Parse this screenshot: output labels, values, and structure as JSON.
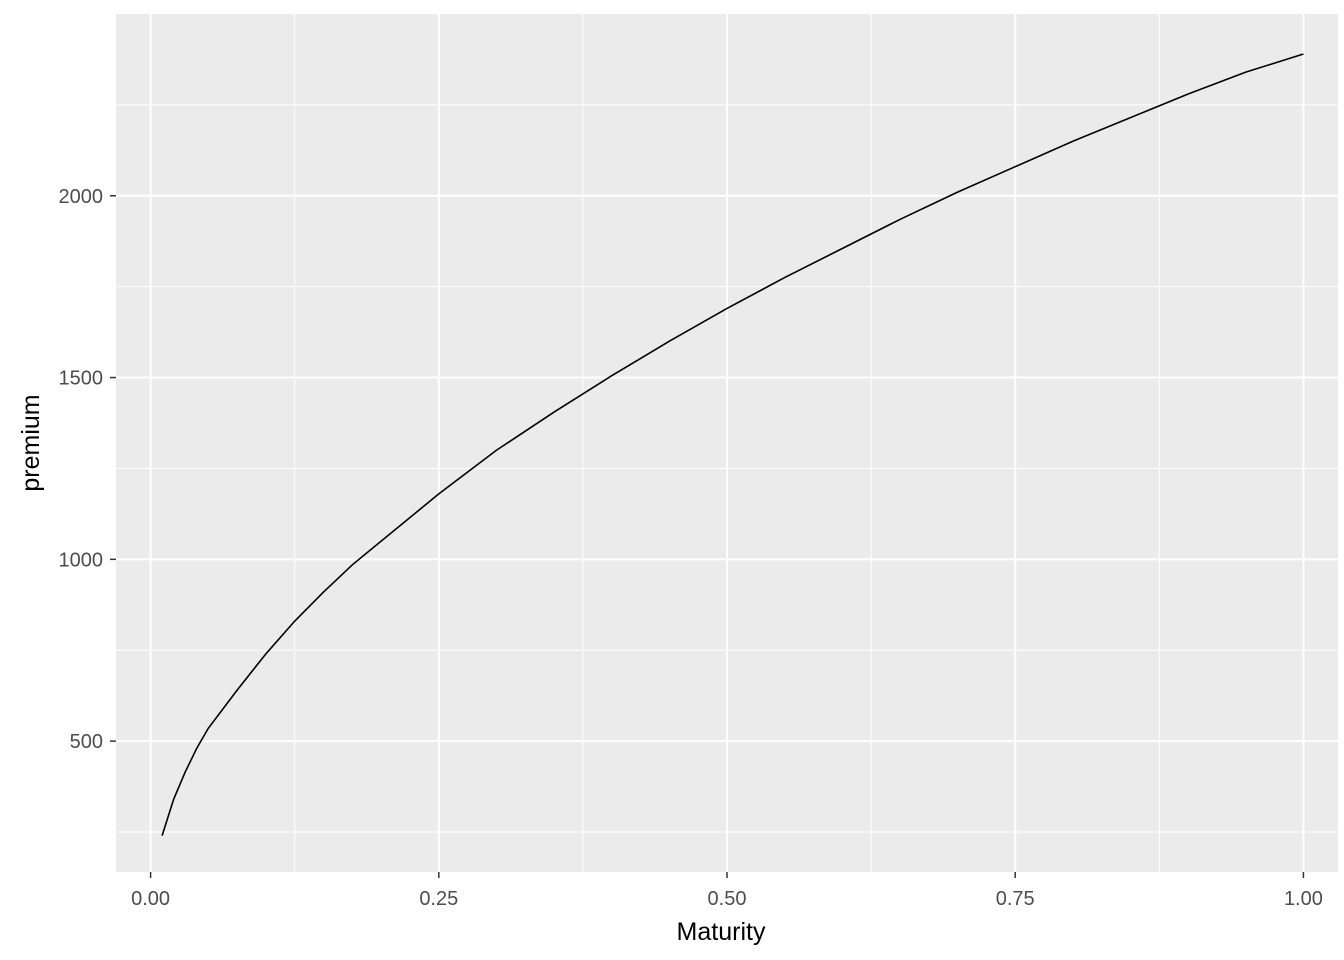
{
  "chart_data": {
    "type": "line",
    "title": "",
    "xlabel": "Maturity",
    "ylabel": "premium",
    "xlim": [
      -0.03,
      1.03
    ],
    "ylim": [
      140,
      2500
    ],
    "x_ticks": [
      0,
      0.25,
      0.5,
      0.75,
      1
    ],
    "x_tick_labels": [
      "0.00",
      "0.25",
      "0.50",
      "0.75",
      "1.00"
    ],
    "y_ticks": [
      500,
      1000,
      1500,
      2000
    ],
    "y_tick_labels": [
      "500",
      "1000",
      "1500",
      "2000"
    ],
    "grid": true,
    "legend": "none",
    "colors": {
      "panel_background": "#ebebeb",
      "grid_line": "#ffffff",
      "series_line": "#000000",
      "tick_mark": "#333333"
    },
    "series": [
      {
        "name": "",
        "x": [
          0.01,
          0.02,
          0.03,
          0.04,
          0.05,
          0.075,
          0.1,
          0.125,
          0.15,
          0.175,
          0.2,
          0.25,
          0.3,
          0.35,
          0.4,
          0.45,
          0.5,
          0.55,
          0.6,
          0.65,
          0.7,
          0.75,
          0.8,
          0.85,
          0.9,
          0.95,
          1.0
        ],
        "y": [
          240,
          340,
          415,
          480,
          535,
          640,
          740,
          830,
          910,
          985,
          1050,
          1180,
          1300,
          1405,
          1505,
          1600,
          1690,
          1775,
          1855,
          1935,
          2010,
          2080,
          2150,
          2215,
          2280,
          2340,
          2390
        ]
      }
    ]
  }
}
